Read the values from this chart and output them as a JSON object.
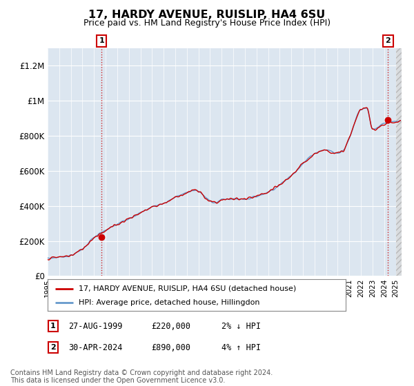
{
  "title": "17, HARDY AVENUE, RUISLIP, HA4 6SU",
  "subtitle": "Price paid vs. HM Land Registry's House Price Index (HPI)",
  "ylim": [
    0,
    1300000
  ],
  "yticks": [
    0,
    200000,
    400000,
    600000,
    800000,
    1000000,
    1200000
  ],
  "ytick_labels": [
    "£0",
    "£200K",
    "£400K",
    "£600K",
    "£800K",
    "£1M",
    "£1.2M"
  ],
  "background_color": "#ffffff",
  "plot_bg_color": "#dce6f0",
  "hpi_color": "#6699cc",
  "price_color": "#cc0000",
  "hatch_color": "#c8c8c8",
  "legend_line1": "17, HARDY AVENUE, RUISLIP, HA4 6SU (detached house)",
  "legend_line2": "HPI: Average price, detached house, Hillingdon",
  "footer": "Contains HM Land Registry data © Crown copyright and database right 2024.\nThis data is licensed under the Open Government Licence v3.0.",
  "ann1_num": "1",
  "ann1_date": "27-AUG-1999",
  "ann1_price": "£220,000",
  "ann1_hpi": "2% ↓ HPI",
  "ann1_x": 1999.65,
  "ann1_y": 220000,
  "ann2_num": "2",
  "ann2_date": "30-APR-2024",
  "ann2_price": "£890,000",
  "ann2_hpi": "4% ↑ HPI",
  "ann2_x": 2024.33,
  "ann2_y": 890000,
  "xmin": 1995,
  "xmax": 2025.5,
  "hatch_start": 2025.0
}
